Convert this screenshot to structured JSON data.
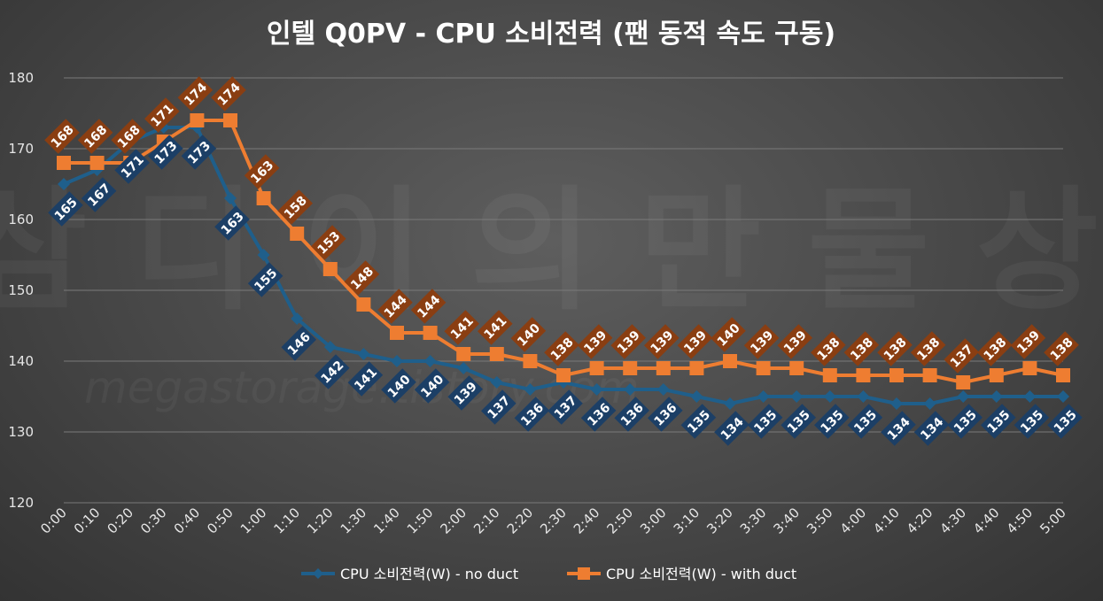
{
  "chart_data": {
    "type": "line",
    "title": "인텔 Q0PV - CPU 소비전력 (팬 동적 속도 구동)",
    "xlabel": "",
    "ylabel": "",
    "ylim": [
      120,
      180
    ],
    "yticks": [
      120,
      130,
      140,
      150,
      160,
      170,
      180
    ],
    "grid": true,
    "legend_position": "bottom",
    "categories": [
      "0:00",
      "0:10",
      "0:20",
      "0:30",
      "0:40",
      "0:50",
      "1:00",
      "1:10",
      "1:20",
      "1:30",
      "1:40",
      "1:50",
      "2:00",
      "2:10",
      "2:20",
      "2:30",
      "2:40",
      "2:50",
      "3:00",
      "3:10",
      "3:20",
      "3:30",
      "3:40",
      "3:50",
      "4:00",
      "4:10",
      "4:20",
      "4:30",
      "4:40",
      "4:50",
      "5:00"
    ],
    "series": [
      {
        "name": "CPU 소비전력(W) - no duct",
        "color": "#1f5f8b",
        "marker": "diamond",
        "label_color": "#1c3f66",
        "values": [
          165,
          167,
          171,
          173,
          173,
          163,
          155,
          146,
          142,
          141,
          140,
          140,
          139,
          137,
          136,
          137,
          136,
          136,
          136,
          135,
          134,
          135,
          135,
          135,
          135,
          134,
          134,
          135,
          135,
          135,
          135
        ]
      },
      {
        "name": "CPU 소비전력(W) - with duct",
        "color": "#ee7d31",
        "marker": "square",
        "label_color": "#8a3e12",
        "values": [
          168,
          168,
          168,
          171,
          174,
          174,
          163,
          158,
          153,
          148,
          144,
          144,
          141,
          141,
          140,
          138,
          139,
          139,
          139,
          139,
          140,
          139,
          139,
          138,
          138,
          138,
          138,
          137,
          138,
          139,
          138
        ]
      }
    ]
  }
}
